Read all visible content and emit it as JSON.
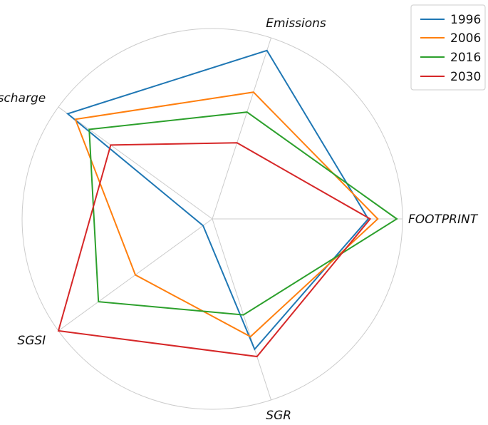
{
  "chart_data": {
    "type": "radar",
    "title": "",
    "axes": [
      "FOOTPRINT",
      "Emissions",
      "Discharge",
      "SGSI",
      "SGR"
    ],
    "range": [
      0,
      1
    ],
    "grid": true,
    "legend_position": "top-right",
    "series": [
      {
        "name": "1996",
        "color": "#1f77b4",
        "values": [
          0.82,
          0.93,
          0.94,
          0.06,
          0.72
        ]
      },
      {
        "name": "2006",
        "color": "#ff7f0e",
        "values": [
          0.87,
          0.7,
          0.89,
          0.5,
          0.65
        ]
      },
      {
        "name": "2016",
        "color": "#2ca02c",
        "values": [
          0.97,
          0.59,
          0.8,
          0.74,
          0.53
        ]
      },
      {
        "name": "2030",
        "color": "#d62728",
        "values": [
          0.83,
          0.42,
          0.66,
          1.0,
          0.76
        ]
      }
    ]
  }
}
